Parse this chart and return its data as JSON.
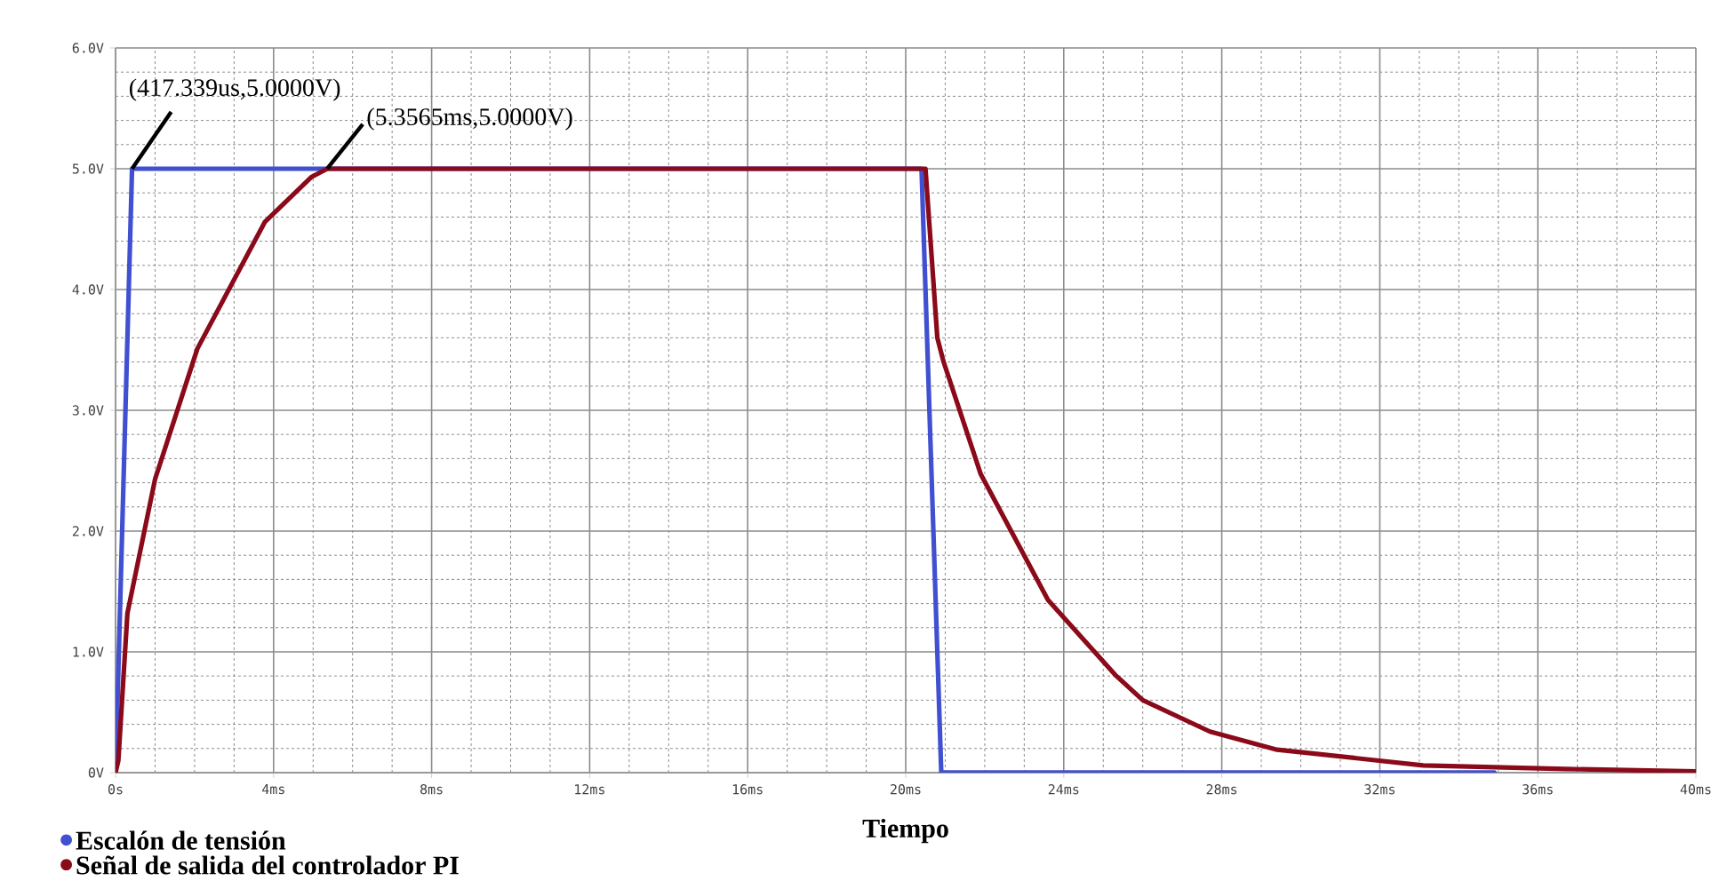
{
  "chart_data": {
    "type": "line",
    "xlabel": "Tiempo",
    "xlim": [
      0,
      40
    ],
    "ylim": [
      0,
      6
    ],
    "xticks": [
      {
        "value": 0,
        "label": "0s"
      },
      {
        "value": 4,
        "label": "4ms"
      },
      {
        "value": 8,
        "label": "8ms"
      },
      {
        "value": 12,
        "label": "12ms"
      },
      {
        "value": 16,
        "label": "16ms"
      },
      {
        "value": 20,
        "label": "20ms"
      },
      {
        "value": 24,
        "label": "24ms"
      },
      {
        "value": 28,
        "label": "28ms"
      },
      {
        "value": 32,
        "label": "32ms"
      },
      {
        "value": 36,
        "label": "36ms"
      },
      {
        "value": 40,
        "label": "40ms"
      }
    ],
    "yticks": [
      {
        "value": 0,
        "label": "0V"
      },
      {
        "value": 1,
        "label": "1.0V"
      },
      {
        "value": 2,
        "label": "2.0V"
      },
      {
        "value": 3,
        "label": "3.0V"
      },
      {
        "value": 4,
        "label": "4.0V"
      },
      {
        "value": 5,
        "label": "5.0V"
      },
      {
        "value": 6,
        "label": "6.0V"
      }
    ],
    "grid": true,
    "legend": "bottom left",
    "marker": "none",
    "series": [
      {
        "name": "Escalón de tensión",
        "color": "#4050d0",
        "x": [
          0,
          0.417,
          20.4,
          20.9,
          34.9
        ],
        "values": [
          0,
          5,
          5,
          0,
          0
        ]
      },
      {
        "name": "Señal de salida del controlador PI",
        "color": "#8b0a1a",
        "x": [
          0,
          0.07,
          0.3,
          1.0,
          2.07,
          3.78,
          4.95,
          5.36,
          20.5,
          20.8,
          20.95,
          21.9,
          23.6,
          25.3,
          26.0,
          27.7,
          29.4,
          33.1,
          36.7,
          40
        ],
        "values": [
          0,
          0.1,
          1.32,
          2.43,
          3.51,
          4.56,
          4.93,
          5.0,
          5.0,
          3.6,
          3.41,
          2.47,
          1.43,
          0.81,
          0.6,
          0.34,
          0.19,
          0.06,
          0.03,
          0.01
        ]
      }
    ],
    "annotations": [
      {
        "text": "(417.339us,5.0000V)",
        "x": 0.417,
        "y": 5
      },
      {
        "text": "(5.3565ms,5.0000V)",
        "x": 5.3565,
        "y": 5
      }
    ]
  }
}
